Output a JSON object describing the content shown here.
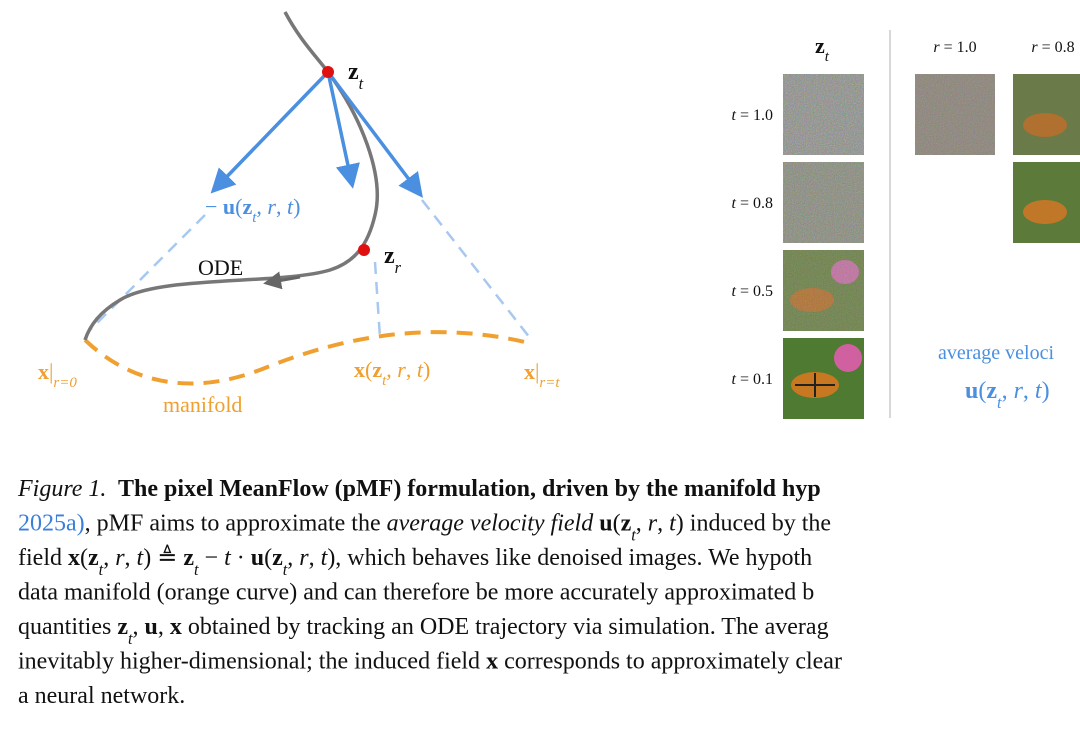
{
  "diagram": {
    "z_t": [
      [
        "z",
        "mb"
      ],
      [
        "t",
        "s"
      ]
    ],
    "velocity": [
      [
        "− ",
        "n"
      ],
      [
        "u",
        "mb"
      ],
      [
        "(",
        "n"
      ],
      [
        "z",
        "mb"
      ],
      [
        "t",
        "s"
      ],
      [
        ", ",
        "n"
      ],
      [
        "r",
        "m"
      ],
      [
        ", ",
        "n"
      ],
      [
        "t",
        "m"
      ],
      [
        ")",
        "n"
      ]
    ],
    "z_r": [
      [
        "z",
        "mb"
      ],
      [
        "r",
        "s"
      ]
    ],
    "ode": [
      [
        "ODE",
        "n"
      ]
    ],
    "x_r0": [
      [
        "x",
        "mb"
      ],
      [
        "|",
        "n"
      ],
      [
        "r=0",
        "s"
      ]
    ],
    "x_field": [
      [
        "x",
        "mb"
      ],
      [
        "(",
        "n"
      ],
      [
        "z",
        "mb"
      ],
      [
        "t",
        "s"
      ],
      [
        ", ",
        "n"
      ],
      [
        "r",
        "m"
      ],
      [
        ", ",
        "n"
      ],
      [
        "t",
        "m"
      ],
      [
        ")",
        "n"
      ]
    ],
    "x_rt": [
      [
        "x",
        "mb"
      ],
      [
        "|",
        "n"
      ],
      [
        "r=t",
        "s"
      ]
    ],
    "manifold": [
      [
        "manifold",
        "n"
      ]
    ]
  },
  "grid": {
    "z_header": [
      [
        "z",
        "mb"
      ],
      [
        "t",
        "s"
      ]
    ],
    "r_headers": [
      [
        [
          "r",
          "m"
        ],
        [
          " = 1.0",
          "n"
        ]
      ],
      [
        [
          "r",
          "m"
        ],
        [
          " = 0.8",
          "n"
        ]
      ]
    ],
    "t_labels": [
      [
        [
          "t",
          "m"
        ],
        [
          " = 1.0",
          "n"
        ]
      ],
      [
        [
          "t",
          "m"
        ],
        [
          " = 0.8",
          "n"
        ]
      ],
      [
        [
          "t",
          "m"
        ],
        [
          " = 0.5",
          "n"
        ]
      ],
      [
        [
          "t",
          "m"
        ],
        [
          " = 0.1",
          "n"
        ]
      ]
    ],
    "avg_label": [
      [
        "average veloci",
        "n"
      ]
    ],
    "avg_formula": [
      [
        "u",
        "mb"
      ],
      [
        "(",
        "n"
      ],
      [
        "z",
        "mb"
      ],
      [
        "t",
        "s"
      ],
      [
        ", ",
        "n"
      ],
      [
        "r",
        "m"
      ],
      [
        ", ",
        "n"
      ],
      [
        "t",
        "m"
      ],
      [
        ")",
        "n"
      ]
    ]
  },
  "caption": {
    "lines": [
      [
        [
          "Figure 1.",
          "i"
        ],
        [
          "  The pixel MeanFlow (pMF) formulation, driven by the manifold hyp",
          "b"
        ]
      ],
      [
        [
          "2025a)",
          "blue"
        ],
        [
          ", pMF aims to approximate the ",
          "n"
        ],
        [
          "average velocity field",
          "i"
        ],
        [
          " ",
          "n"
        ],
        [
          "u",
          "mb"
        ],
        [
          "(",
          "n"
        ],
        [
          "z",
          "mb"
        ],
        [
          "t",
          "s"
        ],
        [
          ", ",
          "n"
        ],
        [
          "r",
          "m"
        ],
        [
          ", ",
          "n"
        ],
        [
          "t",
          "m"
        ],
        [
          ")",
          "n"
        ],
        [
          " induced by the",
          "n"
        ]
      ],
      [
        [
          "field ",
          "n"
        ],
        [
          "x",
          "mb"
        ],
        [
          "(",
          "n"
        ],
        [
          "z",
          "mb"
        ],
        [
          "t",
          "s"
        ],
        [
          ", ",
          "n"
        ],
        [
          "r",
          "m"
        ],
        [
          ", ",
          "n"
        ],
        [
          "t",
          "m"
        ],
        [
          ") ≜ ",
          "n"
        ],
        [
          "z",
          "mb"
        ],
        [
          "t",
          "s"
        ],
        [
          " − ",
          "n"
        ],
        [
          "t",
          "m"
        ],
        [
          " · ",
          "n"
        ],
        [
          "u",
          "mb"
        ],
        [
          "(",
          "n"
        ],
        [
          "z",
          "mb"
        ],
        [
          "t",
          "s"
        ],
        [
          ", ",
          "n"
        ],
        [
          "r",
          "m"
        ],
        [
          ", ",
          "n"
        ],
        [
          "t",
          "m"
        ],
        [
          "), which behaves like denoised images. We hypoth",
          "n"
        ]
      ],
      [
        [
          "data manifold (orange curve) and can therefore be more accurately approximated b",
          "n"
        ]
      ],
      [
        [
          "quantities ",
          "n"
        ],
        [
          "z",
          "mb"
        ],
        [
          "t",
          "s"
        ],
        [
          ", ",
          "n"
        ],
        [
          "u",
          "mb"
        ],
        [
          ", ",
          "n"
        ],
        [
          "x",
          "mb"
        ],
        [
          " obtained by tracking an ODE trajectory via simulation. The averag",
          "n"
        ]
      ],
      [
        [
          "inevitably higher-dimensional; the induced field ",
          "n"
        ],
        [
          "x",
          "mb"
        ],
        [
          " corresponds to approximately clear",
          "n"
        ]
      ],
      [
        [
          "a neural network.",
          "n"
        ]
      ]
    ]
  }
}
